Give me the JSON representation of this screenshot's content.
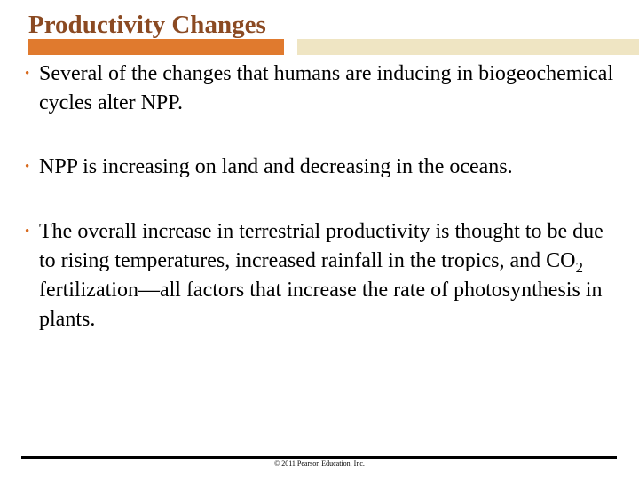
{
  "slide": {
    "title": "Productivity Changes"
  },
  "bullets": [
    {
      "text": "Several of the changes that humans are inducing in biogeochemical cycles alter NPP."
    },
    {
      "text": "NPP is increasing on land and decreasing in the oceans."
    },
    {
      "text_before": "The overall increase in terrestrial productivity is thought to be due to rising temperatures, increased rainfall in the tropics, and CO",
      "subscript": "2",
      "text_after": " fertilization—all factors that increase the rate of photosynthesis in plants."
    }
  ],
  "bullet_glyph": "•",
  "footer": {
    "copyright": "© 2011 Pearson Education, Inc."
  },
  "colors": {
    "title": "#8b4a22",
    "accent_bar": "#e07a2e",
    "secondary_bar": "#efe5c3",
    "bullet": "#d86a1e"
  }
}
